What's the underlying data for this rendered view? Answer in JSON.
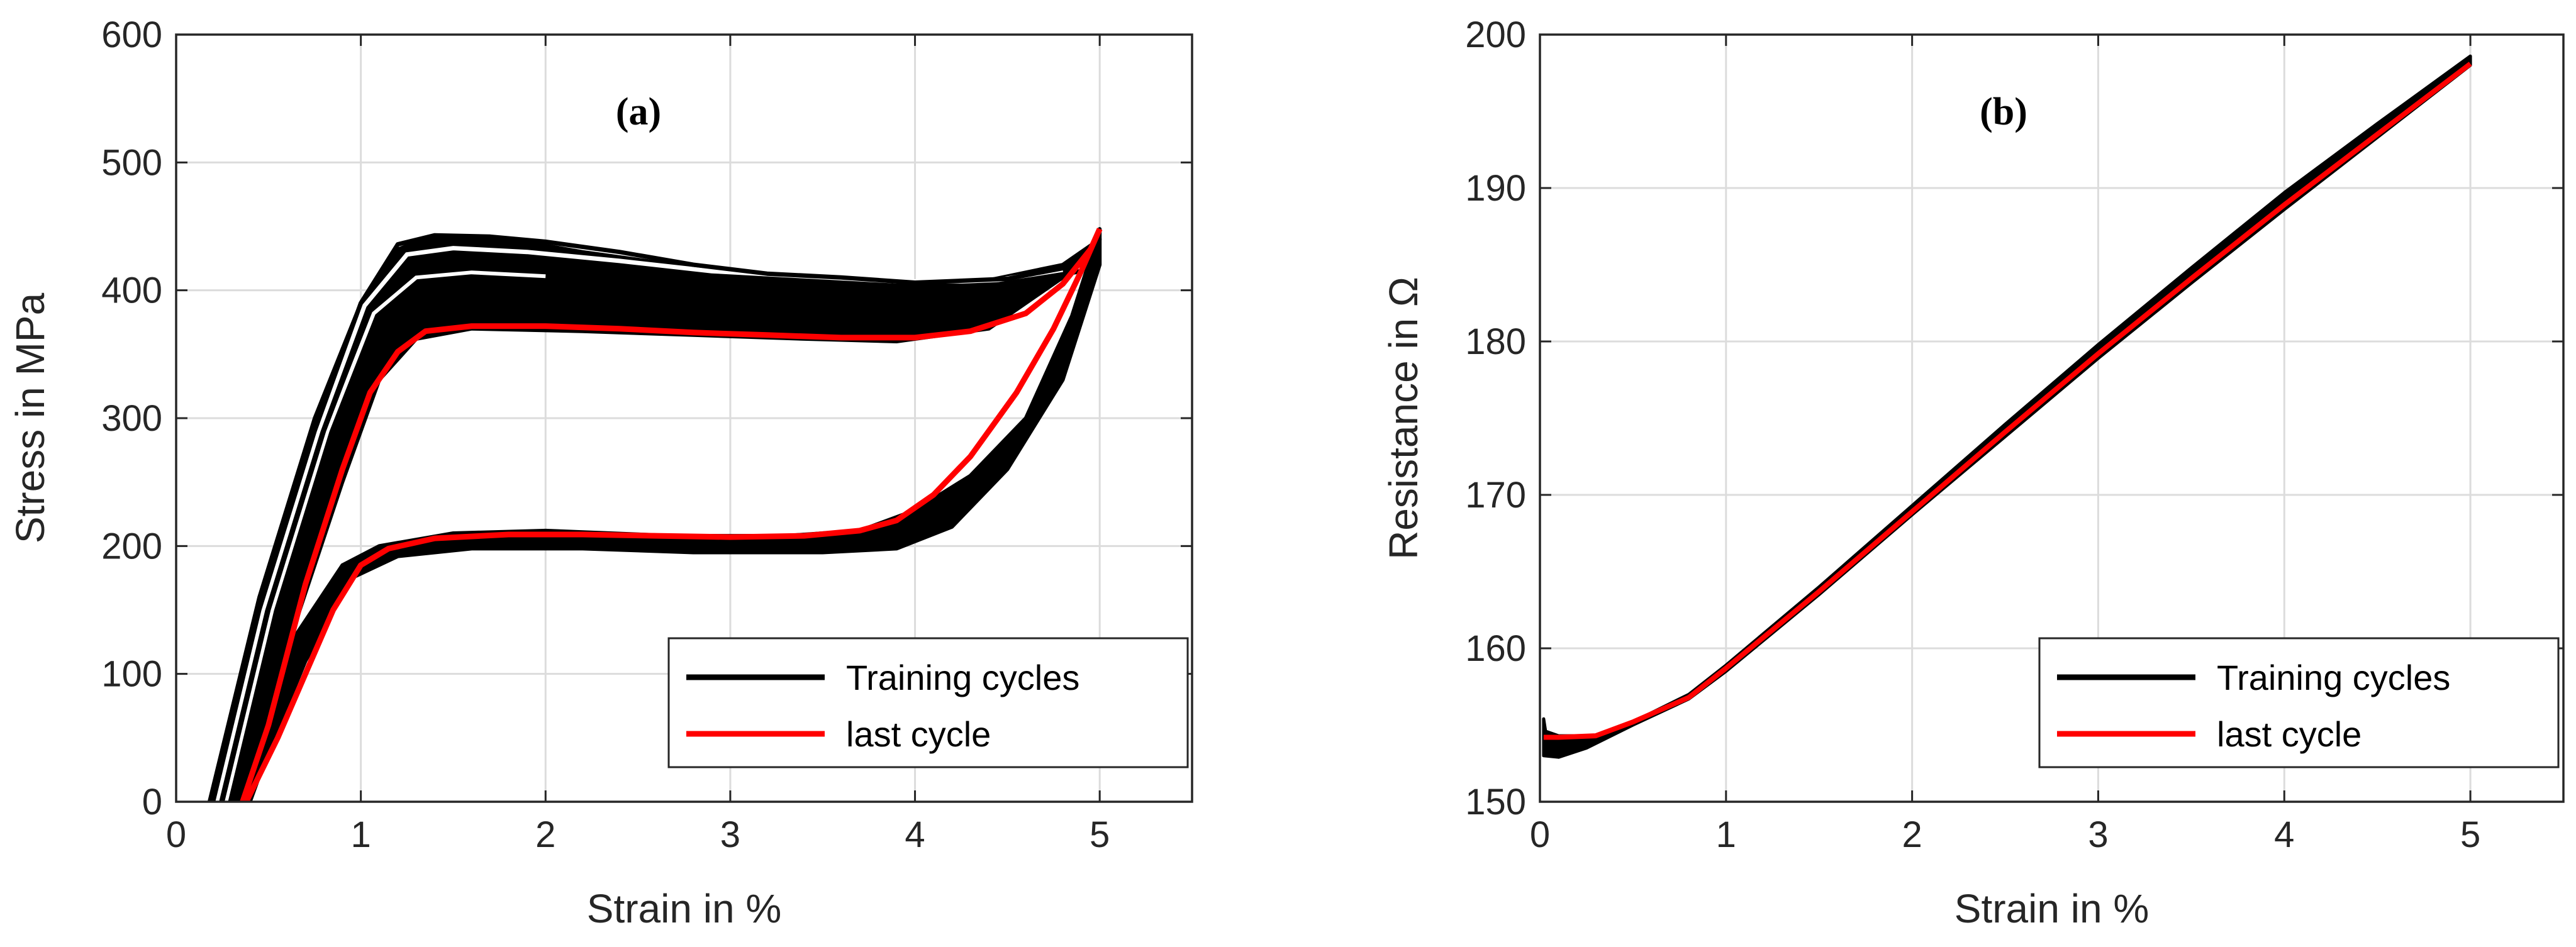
{
  "chart_data": [
    {
      "type": "line",
      "panel_label": "(a)",
      "xlabel": "Strain in %",
      "ylabel": "Stress in MPa",
      "xlim": [
        0,
        5.5
      ],
      "ylim": [
        0,
        600
      ],
      "xticks": [
        0,
        1,
        2,
        3,
        4,
        5
      ],
      "yticks": [
        0,
        100,
        200,
        300,
        400,
        500,
        600
      ],
      "grid": true,
      "legend": {
        "placement": "bottom-right",
        "entries": [
          {
            "label": "Training cycles",
            "color": "#000000"
          },
          {
            "label": "last cycle",
            "color": "#ff0000"
          }
        ]
      },
      "series": [
        {
          "name": "Training cycles",
          "color": "#000000",
          "band": true,
          "upper": [
            [
              0.18,
              0
            ],
            [
              0.45,
              160
            ],
            [
              0.75,
              300
            ],
            [
              1.0,
              390
            ],
            [
              1.2,
              432
            ],
            [
              1.4,
              443
            ],
            [
              1.8,
              440
            ],
            [
              2.2,
              430
            ],
            [
              2.8,
              418
            ],
            [
              3.4,
              410
            ],
            [
              3.9,
              405
            ],
            [
              4.4,
              408
            ],
            [
              4.8,
              420
            ],
            [
              5.0,
              440
            ]
          ],
          "lower_loading": [
            [
              0.36,
              0
            ],
            [
              0.6,
              120
            ],
            [
              0.9,
              250
            ],
            [
              1.1,
              330
            ],
            [
              1.3,
              362
            ],
            [
              1.6,
              370
            ],
            [
              2.2,
              368
            ],
            [
              2.8,
              365
            ],
            [
              3.4,
              362
            ],
            [
              3.9,
              360
            ],
            [
              4.4,
              370
            ],
            [
              4.8,
              410
            ],
            [
              5.0,
              440
            ]
          ],
          "unloading_upper": [
            [
              5.0,
              448
            ],
            [
              4.85,
              380
            ],
            [
              4.6,
              300
            ],
            [
              4.3,
              255
            ],
            [
              4.0,
              228
            ],
            [
              3.7,
              212
            ],
            [
              3.3,
              208
            ],
            [
              2.7,
              208
            ],
            [
              2.0,
              212
            ],
            [
              1.5,
              210
            ],
            [
              1.1,
              200
            ],
            [
              0.9,
              185
            ],
            [
              0.6,
              120
            ],
            [
              0.4,
              40
            ],
            [
              0.3,
              0
            ]
          ],
          "unloading_lower": [
            [
              5.0,
              420
            ],
            [
              4.8,
              330
            ],
            [
              4.5,
              260
            ],
            [
              4.2,
              215
            ],
            [
              3.9,
              198
            ],
            [
              3.5,
              195
            ],
            [
              2.8,
              195
            ],
            [
              2.2,
              198
            ],
            [
              1.6,
              198
            ],
            [
              1.2,
              192
            ],
            [
              0.95,
              175
            ],
            [
              0.7,
              110
            ],
            [
              0.5,
              40
            ],
            [
              0.4,
              0
            ]
          ],
          "outer_cycles": [
            [
              [
                0.2,
                0
              ],
              [
                0.45,
                150
              ],
              [
                0.75,
                290
              ],
              [
                1.0,
                390
              ],
              [
                1.2,
                436
              ],
              [
                1.4,
                443
              ],
              [
                1.7,
                442
              ],
              [
                2.0,
                438
              ],
              [
                2.4,
                430
              ],
              [
                2.8,
                420
              ],
              [
                3.2,
                413
              ],
              [
                3.6,
                410
              ],
              [
                4.0,
                406
              ],
              [
                4.5,
                409
              ],
              [
                4.9,
                420
              ],
              [
                5.0,
                440
              ]
            ],
            [
              [
                0.25,
                0
              ],
              [
                0.5,
                150
              ],
              [
                0.8,
                290
              ],
              [
                1.05,
                385
              ],
              [
                1.3,
                420
              ],
              [
                1.6,
                423
              ],
              [
                2.0,
                419
              ],
              [
                2.5,
                413
              ],
              [
                3.0,
                408
              ],
              [
                3.5,
                405
              ],
              [
                4.0,
                402
              ],
              [
                4.5,
                405
              ],
              [
                4.9,
                415
              ],
              [
                5.0,
                440
              ]
            ]
          ]
        },
        {
          "name": "last cycle",
          "color": "#ff0000",
          "loading": [
            [
              0.36,
              0
            ],
            [
              0.5,
              60
            ],
            [
              0.7,
              170
            ],
            [
              0.9,
              260
            ],
            [
              1.05,
              320
            ],
            [
              1.2,
              352
            ],
            [
              1.35,
              368
            ],
            [
              1.6,
              372
            ],
            [
              2.0,
              372
            ],
            [
              2.4,
              370
            ],
            [
              2.8,
              367
            ],
            [
              3.2,
              365
            ],
            [
              3.6,
              363
            ],
            [
              4.0,
              363
            ],
            [
              4.3,
              368
            ],
            [
              4.6,
              382
            ],
            [
              4.8,
              405
            ],
            [
              4.95,
              432
            ],
            [
              5.0,
              448
            ]
          ],
          "unloading": [
            [
              5.0,
              448
            ],
            [
              4.9,
              415
            ],
            [
              4.75,
              370
            ],
            [
              4.55,
              320
            ],
            [
              4.3,
              270
            ],
            [
              4.1,
              240
            ],
            [
              3.9,
              220
            ],
            [
              3.7,
              212
            ],
            [
              3.4,
              208
            ],
            [
              3.0,
              207
            ],
            [
              2.6,
              208
            ],
            [
              2.2,
              209
            ],
            [
              1.8,
              209
            ],
            [
              1.4,
              206
            ],
            [
              1.15,
              198
            ],
            [
              1.0,
              185
            ],
            [
              0.85,
              150
            ],
            [
              0.7,
              100
            ],
            [
              0.55,
              50
            ],
            [
              0.38,
              0
            ]
          ]
        }
      ]
    },
    {
      "type": "line",
      "panel_label": "(b)",
      "xlabel": "Strain in %",
      "ylabel": "Resistance in Ω",
      "xlim": [
        0,
        5.5
      ],
      "ylim": [
        150,
        200
      ],
      "xticks": [
        0,
        1,
        2,
        3,
        4,
        5
      ],
      "yticks": [
        150,
        160,
        170,
        180,
        190,
        200
      ],
      "grid": true,
      "legend": {
        "placement": "bottom-right",
        "entries": [
          {
            "label": "Training cycles",
            "color": "#000000"
          },
          {
            "label": "last cycle",
            "color": "#ff0000"
          }
        ]
      },
      "series": [
        {
          "name": "Training cycles",
          "color": "#000000",
          "upper": [
            [
              0.02,
              155.4
            ],
            [
              0.03,
              154.6
            ],
            [
              0.1,
              154.3
            ],
            [
              0.3,
              154.3
            ],
            [
              0.5,
              155.2
            ],
            [
              0.8,
              157.0
            ],
            [
              1.0,
              158.9
            ],
            [
              1.5,
              164.0
            ],
            [
              2.0,
              169.3
            ],
            [
              2.5,
              174.6
            ],
            [
              3.0,
              179.8
            ],
            [
              3.5,
              184.8
            ],
            [
              4.0,
              189.7
            ],
            [
              4.5,
              194.2
            ],
            [
              5.0,
              198.6
            ]
          ],
          "lower": [
            [
              0.02,
              153.0
            ],
            [
              0.1,
              152.9
            ],
            [
              0.25,
              153.5
            ],
            [
              0.5,
              155.0
            ],
            [
              0.8,
              156.7
            ],
            [
              1.0,
              158.5
            ],
            [
              1.5,
              163.5
            ],
            [
              2.0,
              168.7
            ],
            [
              2.5,
              173.8
            ],
            [
              3.0,
              178.9
            ],
            [
              3.5,
              183.8
            ],
            [
              4.0,
              188.6
            ],
            [
              4.5,
              193.3
            ],
            [
              5.0,
              198.0
            ]
          ]
        },
        {
          "name": "last cycle",
          "color": "#ff0000",
          "values": [
            [
              0.02,
              154.2
            ],
            [
              0.1,
              154.2
            ],
            [
              0.3,
              154.3
            ],
            [
              0.5,
              155.2
            ],
            [
              0.8,
              156.8
            ],
            [
              1.0,
              158.7
            ],
            [
              1.5,
              163.7
            ],
            [
              2.0,
              168.9
            ],
            [
              2.5,
              174.1
            ],
            [
              3.0,
              179.2
            ],
            [
              3.5,
              184.1
            ],
            [
              4.0,
              188.9
            ],
            [
              4.5,
              193.5
            ],
            [
              5.0,
              198.1
            ]
          ]
        }
      ]
    }
  ]
}
